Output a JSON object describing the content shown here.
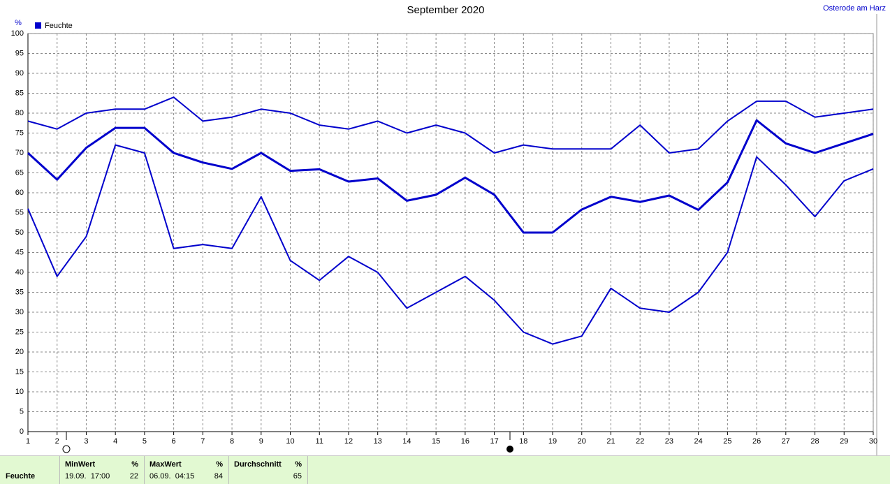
{
  "chart_data": {
    "type": "line",
    "title": "September 2020",
    "station": "Osterode am Harz",
    "y_unit": "%",
    "x": [
      1,
      2,
      3,
      4,
      5,
      6,
      7,
      8,
      9,
      10,
      11,
      12,
      13,
      14,
      15,
      16,
      17,
      18,
      19,
      20,
      21,
      22,
      23,
      24,
      25,
      26,
      27,
      28,
      29,
      30
    ],
    "xlim": [
      1,
      30
    ],
    "xticks": [
      1,
      2,
      3,
      4,
      5,
      6,
      7,
      8,
      9,
      10,
      11,
      12,
      13,
      14,
      15,
      16,
      17,
      18,
      19,
      20,
      21,
      22,
      23,
      24,
      25,
      26,
      27,
      28,
      29,
      30
    ],
    "ylim": [
      0,
      100
    ],
    "yticks": [
      0,
      5,
      10,
      15,
      20,
      25,
      30,
      35,
      40,
      45,
      50,
      55,
      60,
      65,
      70,
      75,
      80,
      85,
      90,
      95,
      100
    ],
    "grid": true,
    "legend": "top-left",
    "series": [
      {
        "name": "Feuchte",
        "color": "#0000cc",
        "values": [
          70,
          63.3,
          71.3,
          76.3,
          76.3,
          70,
          67.6,
          66,
          70,
          65.5,
          65.9,
          62.8,
          63.6,
          58,
          59.5,
          63.8,
          59.5,
          50,
          50,
          55.8,
          59,
          57.7,
          59.3,
          55.7,
          62.6,
          78.2,
          72.4,
          70,
          72.4,
          74.8
        ]
      },
      {
        "color": "#0000cc",
        "values": [
          78,
          76,
          80,
          81,
          81,
          84,
          78,
          79,
          81,
          80,
          77,
          76,
          78,
          75,
          77,
          75,
          70,
          72,
          71,
          71,
          71,
          77,
          70,
          71,
          78,
          83,
          83,
          79,
          80,
          81
        ]
      },
      {
        "color": "#0000cc",
        "values": [
          56,
          39,
          49,
          72,
          70,
          46,
          47,
          46,
          59,
          43,
          38,
          44,
          40,
          31,
          35,
          39,
          33,
          25,
          22,
          24,
          36,
          31,
          30,
          35,
          45,
          69,
          62,
          54,
          63,
          66
        ]
      }
    ]
  },
  "summary": {
    "label": "Feuchte",
    "columns": [
      {
        "header": "MinWert",
        "unit": "%",
        "time": "19.09.  17:00",
        "value": 22
      },
      {
        "header": "MaxWert",
        "unit": "%",
        "time": "06.09.  04:15",
        "value": 84
      },
      {
        "header": "Durchschnitt",
        "unit": "%",
        "time": null,
        "value": 65
      }
    ]
  }
}
